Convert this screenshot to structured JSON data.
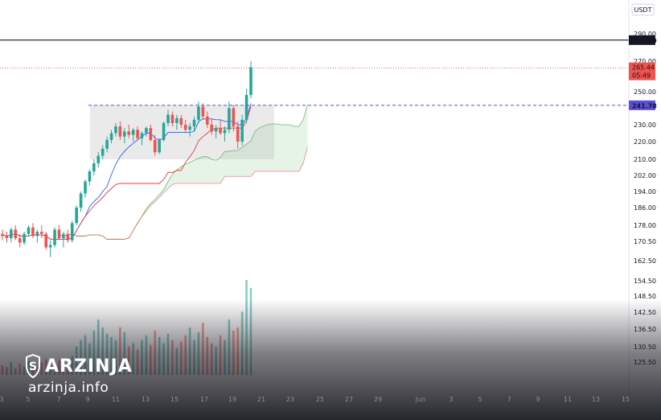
{
  "currency": "USDT",
  "price_labels": {
    "resistance": "285.39",
    "last_price": "265.44",
    "countdown": "05:49",
    "support": "241.78"
  },
  "colors": {
    "up": "#26a69a",
    "down": "#ef5350",
    "tenkan": "#2962ff",
    "kijun": "#f23645",
    "cloud": "#c8e6c9",
    "lagging": "#66bb6a",
    "support_line": "#5b4fd6",
    "resistance_line": "#131722",
    "box": "#9e9e9e"
  },
  "brand": {
    "name": "ARZINJA",
    "site": "arzinja.info"
  },
  "chart_data": {
    "type": "candlestick",
    "currency": "USDT",
    "y_ticks": [
      "290.00",
      "270.00",
      "250.00",
      "230.00",
      "220.00",
      "210.00",
      "202.00",
      "194.00",
      "186.00",
      "178.00",
      "170.50",
      "162.50",
      "154.50",
      "148.50",
      "142.50",
      "136.50",
      "130.50",
      "125.50"
    ],
    "x_ticks": [
      "3",
      "5",
      "7",
      "9",
      "11",
      "13",
      "15",
      "17",
      "19",
      "21",
      "23",
      "25",
      "27",
      "29",
      "Jun",
      "3",
      "5",
      "7",
      "9",
      "11",
      "13",
      "15"
    ],
    "horizontal_levels": [
      285.39,
      241.78
    ],
    "last_price": 265.44,
    "consolidation_box": {
      "from": "13",
      "to": "21",
      "low": 210,
      "high": 242
    },
    "candles": [
      {
        "o": 174,
        "h": 176,
        "l": 171,
        "c": 173
      },
      {
        "o": 173,
        "h": 175,
        "l": 170,
        "c": 172
      },
      {
        "o": 172,
        "h": 177,
        "l": 170,
        "c": 176
      },
      {
        "o": 176,
        "h": 178,
        "l": 171,
        "c": 172
      },
      {
        "o": 172,
        "h": 174,
        "l": 168,
        "c": 170
      },
      {
        "o": 170,
        "h": 175,
        "l": 169,
        "c": 174
      },
      {
        "o": 174,
        "h": 178,
        "l": 173,
        "c": 177
      },
      {
        "o": 177,
        "h": 179,
        "l": 172,
        "c": 173
      },
      {
        "o": 173,
        "h": 176,
        "l": 170,
        "c": 175
      },
      {
        "o": 175,
        "h": 178,
        "l": 172,
        "c": 174
      },
      {
        "o": 174,
        "h": 175,
        "l": 167,
        "c": 168
      },
      {
        "o": 168,
        "h": 171,
        "l": 164,
        "c": 169
      },
      {
        "o": 169,
        "h": 177,
        "l": 168,
        "c": 176
      },
      {
        "o": 176,
        "h": 178,
        "l": 171,
        "c": 172
      },
      {
        "o": 172,
        "h": 175,
        "l": 168,
        "c": 174
      },
      {
        "o": 174,
        "h": 176,
        "l": 170,
        "c": 171
      },
      {
        "o": 171,
        "h": 180,
        "l": 170,
        "c": 179
      },
      {
        "o": 179,
        "h": 187,
        "l": 178,
        "c": 186
      },
      {
        "o": 186,
        "h": 194,
        "l": 184,
        "c": 193
      },
      {
        "o": 193,
        "h": 200,
        "l": 191,
        "c": 199
      },
      {
        "o": 199,
        "h": 205,
        "l": 197,
        "c": 204
      },
      {
        "o": 204,
        "h": 210,
        "l": 202,
        "c": 208
      },
      {
        "o": 208,
        "h": 214,
        "l": 206,
        "c": 212
      },
      {
        "o": 212,
        "h": 218,
        "l": 210,
        "c": 216
      },
      {
        "o": 216,
        "h": 223,
        "l": 214,
        "c": 221
      },
      {
        "o": 221,
        "h": 227,
        "l": 219,
        "c": 225
      },
      {
        "o": 225,
        "h": 231,
        "l": 223,
        "c": 229
      },
      {
        "o": 229,
        "h": 232,
        "l": 221,
        "c": 223
      },
      {
        "o": 223,
        "h": 228,
        "l": 219,
        "c": 226
      },
      {
        "o": 226,
        "h": 230,
        "l": 222,
        "c": 224
      },
      {
        "o": 224,
        "h": 228,
        "l": 220,
        "c": 227
      },
      {
        "o": 227,
        "h": 229,
        "l": 221,
        "c": 222
      },
      {
        "o": 222,
        "h": 226,
        "l": 218,
        "c": 225
      },
      {
        "o": 225,
        "h": 229,
        "l": 223,
        "c": 228
      },
      {
        "o": 228,
        "h": 230,
        "l": 220,
        "c": 221
      },
      {
        "o": 221,
        "h": 224,
        "l": 212,
        "c": 214
      },
      {
        "o": 214,
        "h": 222,
        "l": 213,
        "c": 221
      },
      {
        "o": 221,
        "h": 232,
        "l": 220,
        "c": 231
      },
      {
        "o": 231,
        "h": 239,
        "l": 229,
        "c": 236
      },
      {
        "o": 236,
        "h": 238,
        "l": 229,
        "c": 231
      },
      {
        "o": 231,
        "h": 236,
        "l": 227,
        "c": 234
      },
      {
        "o": 234,
        "h": 236,
        "l": 228,
        "c": 230
      },
      {
        "o": 230,
        "h": 233,
        "l": 225,
        "c": 227
      },
      {
        "o": 227,
        "h": 231,
        "l": 223,
        "c": 229
      },
      {
        "o": 229,
        "h": 235,
        "l": 226,
        "c": 233
      },
      {
        "o": 233,
        "h": 244,
        "l": 231,
        "c": 241
      },
      {
        "o": 241,
        "h": 243,
        "l": 233,
        "c": 235
      },
      {
        "o": 235,
        "h": 238,
        "l": 228,
        "c": 230
      },
      {
        "o": 230,
        "h": 234,
        "l": 224,
        "c": 226
      },
      {
        "o": 226,
        "h": 230,
        "l": 222,
        "c": 228
      },
      {
        "o": 228,
        "h": 233,
        "l": 224,
        "c": 225
      },
      {
        "o": 225,
        "h": 229,
        "l": 220,
        "c": 227
      },
      {
        "o": 227,
        "h": 244,
        "l": 225,
        "c": 240
      },
      {
        "o": 240,
        "h": 242,
        "l": 226,
        "c": 229
      },
      {
        "o": 229,
        "h": 232,
        "l": 216,
        "c": 220
      },
      {
        "o": 220,
        "h": 236,
        "l": 218,
        "c": 233
      },
      {
        "o": 233,
        "h": 252,
        "l": 231,
        "c": 248
      },
      {
        "o": 248,
        "h": 270,
        "l": 246,
        "c": 266
      }
    ],
    "volume": [
      6,
      5,
      8,
      4,
      7,
      5,
      9,
      6,
      5,
      8,
      10,
      7,
      6,
      9,
      5,
      7,
      12,
      18,
      22,
      25,
      20,
      28,
      35,
      30,
      26,
      24,
      22,
      30,
      27,
      18,
      20,
      16,
      22,
      25,
      19,
      28,
      24,
      20,
      26,
      22,
      17,
      21,
      25,
      30,
      22,
      27,
      33,
      24,
      20,
      18,
      25,
      22,
      35,
      28,
      30,
      40,
      60,
      55
    ]
  }
}
